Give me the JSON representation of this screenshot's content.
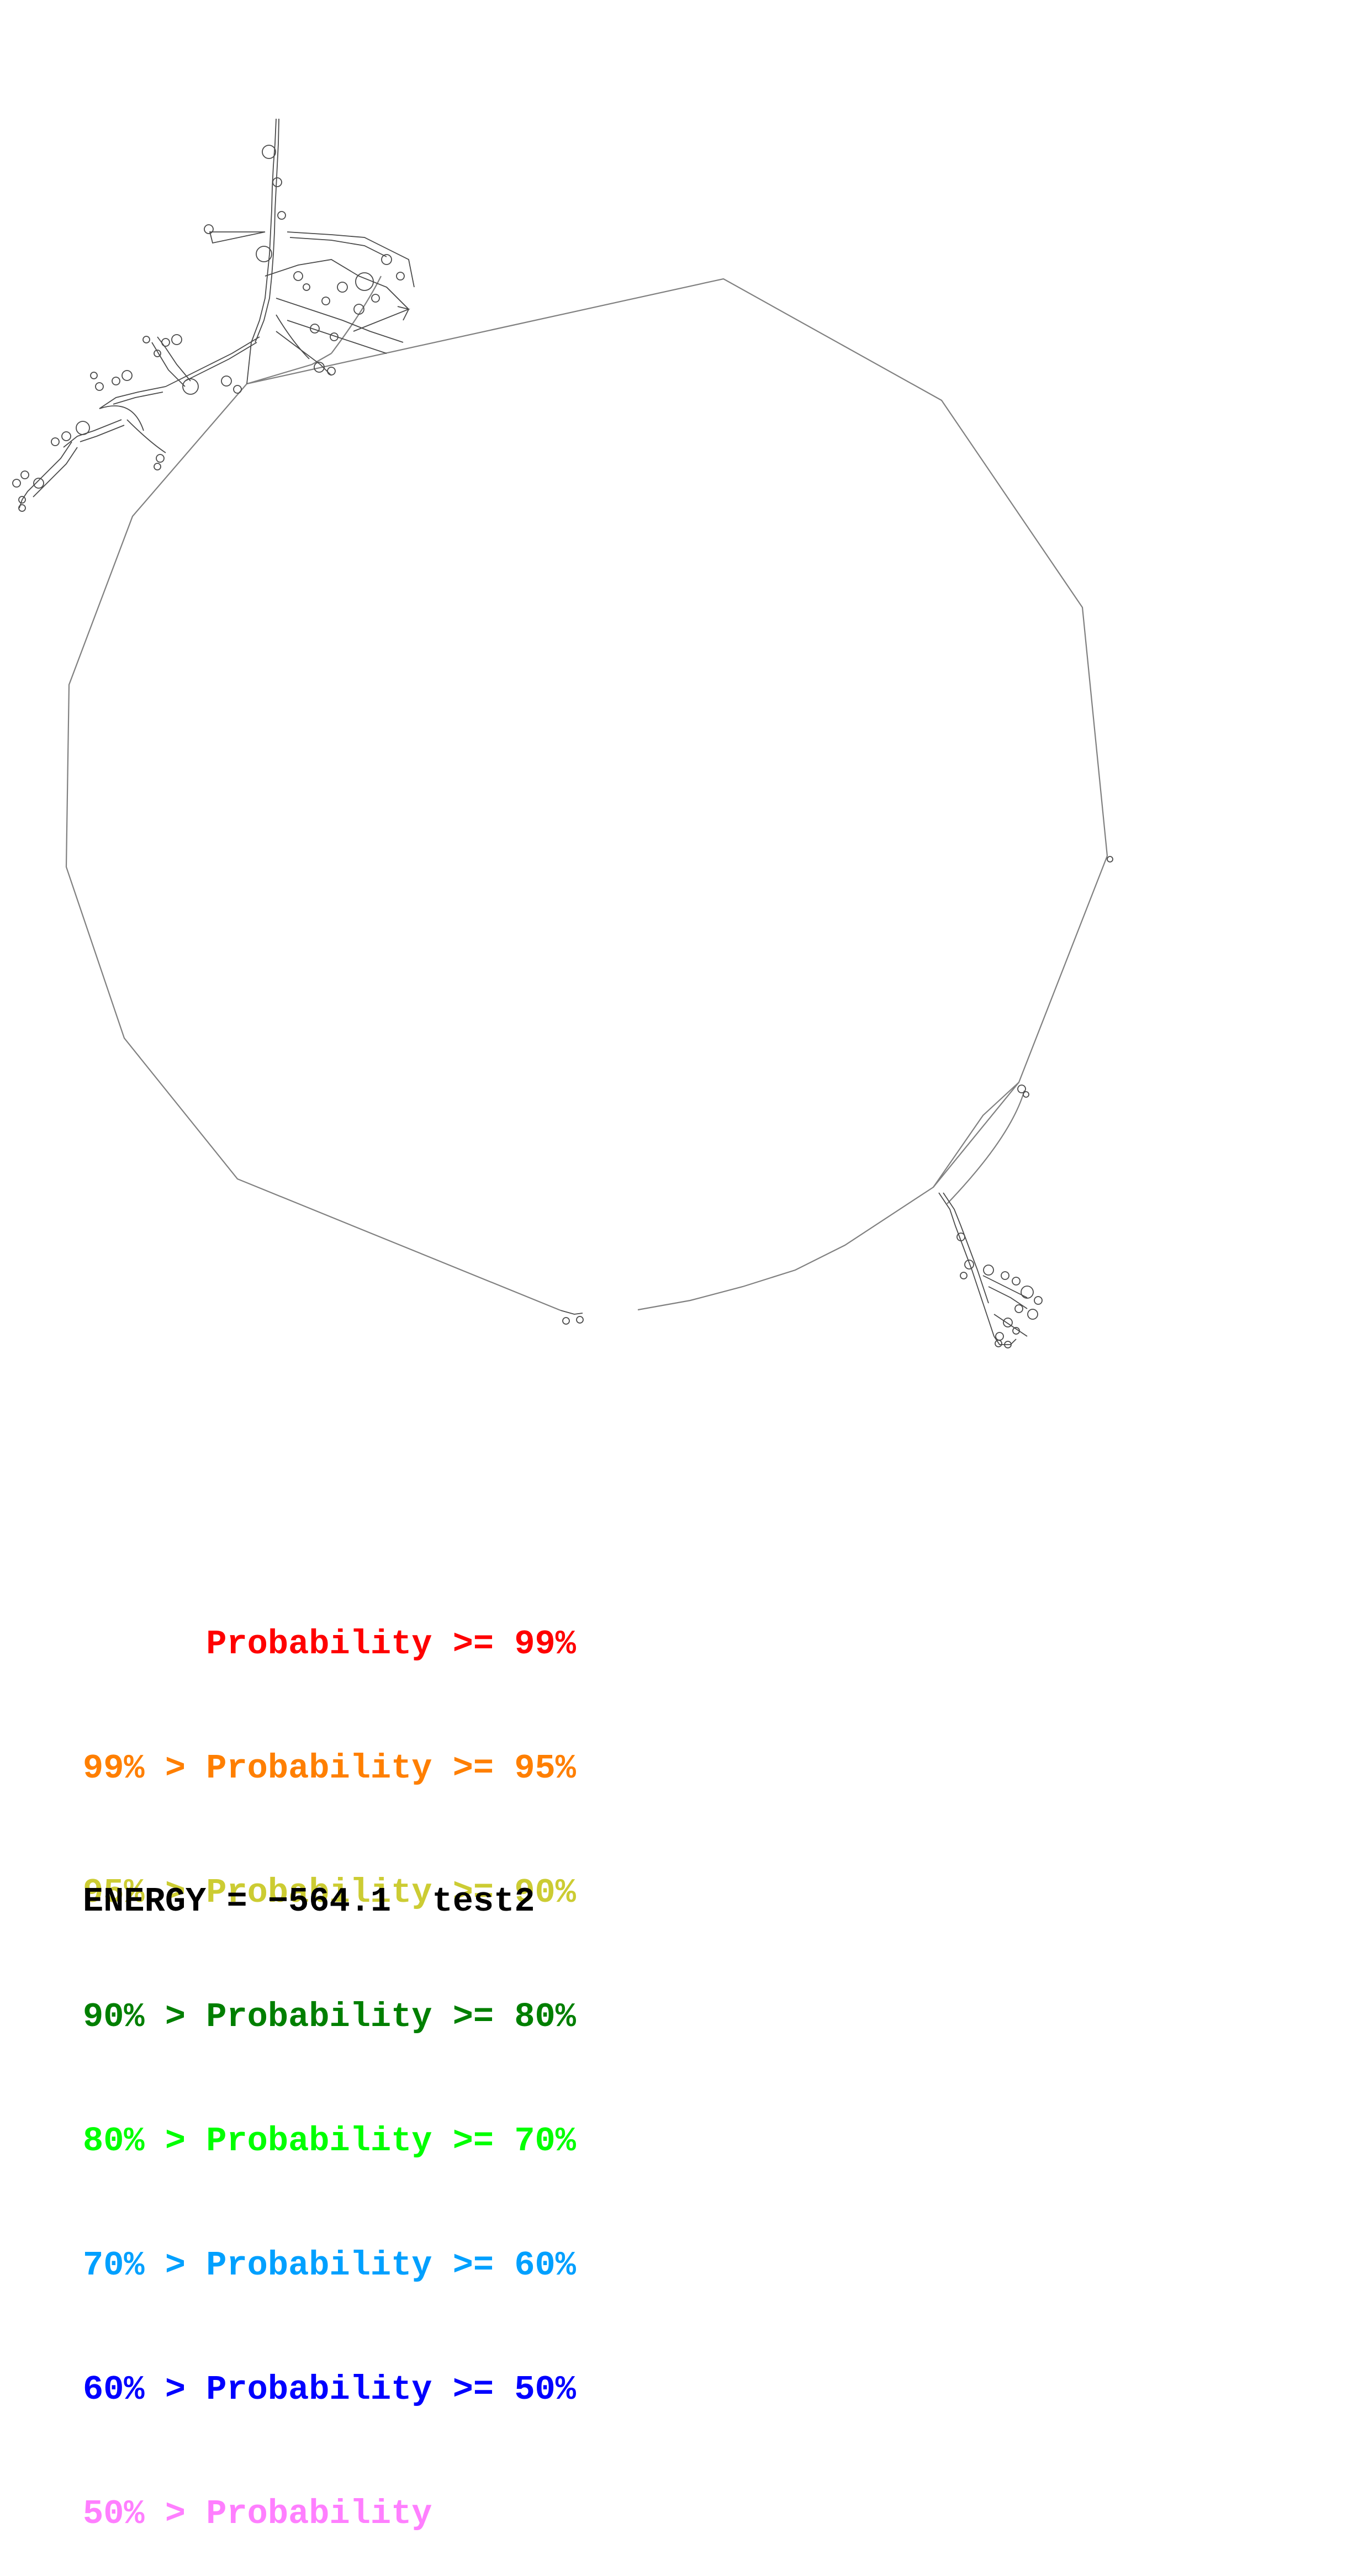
{
  "legend": {
    "rows": [
      {
        "prefix": "",
        "text": "Probability >= 99%",
        "color": "#ff0000"
      },
      {
        "prefix": "99% > ",
        "text": "Probability >= 95%",
        "color": "#ff7f00"
      },
      {
        "prefix": "95% > ",
        "text": "Probability >= 90%",
        "color": "#cccc33"
      },
      {
        "prefix": "90% > ",
        "text": "Probability >= 80%",
        "color": "#007f00"
      },
      {
        "prefix": "80% > ",
        "text": "Probability >= 70%",
        "color": "#00ff00"
      },
      {
        "prefix": "70% > ",
        "text": "Probability >= 60%",
        "color": "#00a0ff"
      },
      {
        "prefix": "60% > ",
        "text": "Probability >= 50%",
        "color": "#0000ff"
      },
      {
        "prefix": "50% > ",
        "text": "Probability",
        "color": "#ff7fff"
      }
    ]
  },
  "footer": {
    "energy_label": "ENERGY = −564.1",
    "sequence_name": "test2"
  },
  "colors": {
    "backbone": "#7f7f7f",
    "structure_detail": "#333333"
  }
}
